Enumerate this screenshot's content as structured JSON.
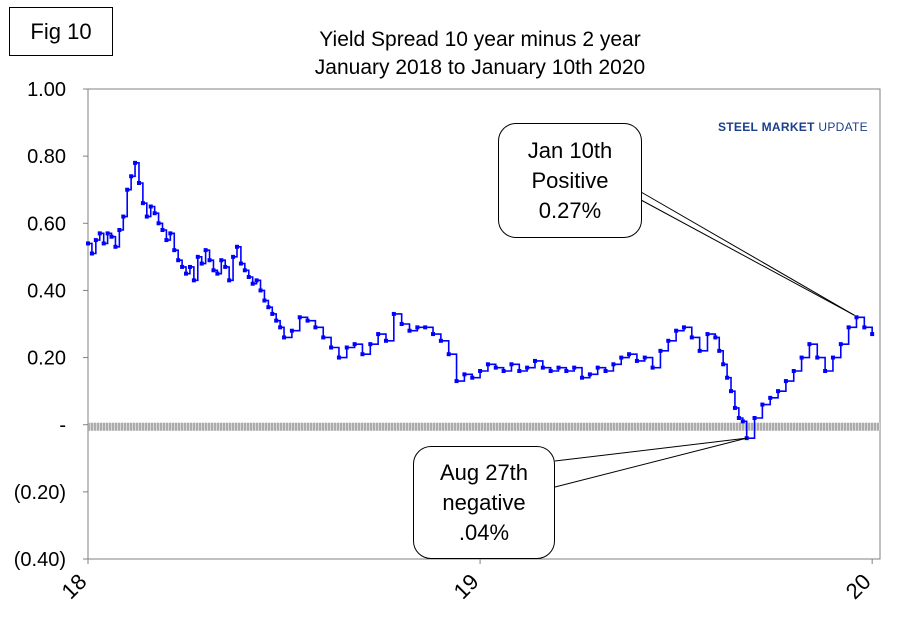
{
  "figure_label": "Fig 10",
  "title_line1": "Yield Spread 10 year minus 2 year",
  "title_line2": "January 2018 to January 10th 2020",
  "logo": {
    "part1": "STEEL MARKET",
    "part2": "UPDATE"
  },
  "callout_top": {
    "line1": "Jan 10th",
    "line2": "Positive",
    "line3": "0.27%"
  },
  "callout_bottom": {
    "line1": "Aug 27th",
    "line2": "negative",
    "line3": ".04%"
  },
  "colors": {
    "series": "#0000ff",
    "axis": "#808080",
    "zero_band": "#808080"
  },
  "chart_data": {
    "type": "line",
    "title": "Yield Spread 10 year minus 2 year January 2018 to January 10th 2020",
    "xlabel": "",
    "ylabel": "",
    "grid": false,
    "xlim": [
      18,
      20.02
    ],
    "ylim": [
      -0.4,
      1.0
    ],
    "x_ticks": [
      "18",
      "19",
      "20"
    ],
    "y_ticks": [
      {
        "value": 1.0,
        "label": "1.00"
      },
      {
        "value": 0.8,
        "label": "0.80"
      },
      {
        "value": 0.6,
        "label": "0.60"
      },
      {
        "value": 0.4,
        "label": "0.40"
      },
      {
        "value": 0.2,
        "label": "0.20"
      },
      {
        "value": 0.0,
        "label": "-"
      },
      {
        "value": -0.2,
        "label": "(0.20)"
      },
      {
        "value": -0.4,
        "label": "(0.40)"
      }
    ],
    "series": [
      {
        "x": [
          18.0,
          18.01,
          18.02,
          18.03,
          18.04,
          18.05,
          18.06,
          18.07,
          18.08,
          18.09,
          18.1,
          18.11,
          18.12,
          18.13,
          18.14,
          18.15,
          18.16,
          18.17,
          18.18,
          18.19,
          18.2,
          18.21,
          18.22,
          18.23,
          18.24,
          18.25,
          18.26,
          18.27,
          18.28,
          18.29,
          18.3,
          18.31,
          18.32,
          18.33,
          18.34,
          18.35,
          18.36,
          18.37,
          18.38,
          18.39,
          18.4,
          18.41,
          18.42,
          18.43,
          18.44,
          18.45,
          18.46,
          18.47,
          18.48,
          18.49,
          18.5,
          18.52,
          18.54,
          18.56,
          18.58,
          18.6,
          18.62,
          18.64,
          18.66,
          18.68,
          18.7,
          18.72,
          18.74,
          18.76,
          18.78,
          18.8,
          18.82,
          18.84,
          18.86,
          18.88,
          18.9,
          18.92,
          18.94,
          18.96,
          18.98,
          19.0,
          19.02,
          19.04,
          19.06,
          19.08,
          19.1,
          19.12,
          19.14,
          19.16,
          19.18,
          19.2,
          19.22,
          19.24,
          19.26,
          19.28,
          19.3,
          19.32,
          19.34,
          19.36,
          19.38,
          19.4,
          19.42,
          19.44,
          19.46,
          19.48,
          19.5,
          19.52,
          19.54,
          19.56,
          19.58,
          19.6,
          19.61,
          19.62,
          19.63,
          19.64,
          19.65,
          19.66,
          19.67,
          19.68,
          19.7,
          19.72,
          19.74,
          19.76,
          19.78,
          19.8,
          19.82,
          19.84,
          19.86,
          19.88,
          19.9,
          19.92,
          19.94,
          19.96,
          19.98,
          20.0
        ],
        "values": [
          0.54,
          0.51,
          0.55,
          0.57,
          0.54,
          0.57,
          0.56,
          0.53,
          0.58,
          0.62,
          0.7,
          0.74,
          0.78,
          0.72,
          0.66,
          0.62,
          0.65,
          0.63,
          0.6,
          0.58,
          0.55,
          0.57,
          0.52,
          0.49,
          0.47,
          0.45,
          0.47,
          0.43,
          0.5,
          0.48,
          0.52,
          0.49,
          0.46,
          0.45,
          0.49,
          0.47,
          0.43,
          0.5,
          0.53,
          0.48,
          0.46,
          0.44,
          0.42,
          0.43,
          0.4,
          0.37,
          0.35,
          0.33,
          0.31,
          0.29,
          0.26,
          0.28,
          0.32,
          0.31,
          0.29,
          0.26,
          0.23,
          0.2,
          0.23,
          0.24,
          0.21,
          0.24,
          0.27,
          0.25,
          0.33,
          0.3,
          0.28,
          0.29,
          0.29,
          0.27,
          0.25,
          0.21,
          0.13,
          0.15,
          0.14,
          0.16,
          0.18,
          0.17,
          0.16,
          0.18,
          0.16,
          0.17,
          0.19,
          0.17,
          0.16,
          0.17,
          0.16,
          0.17,
          0.14,
          0.15,
          0.17,
          0.16,
          0.18,
          0.2,
          0.21,
          0.19,
          0.2,
          0.17,
          0.22,
          0.25,
          0.28,
          0.29,
          0.26,
          0.22,
          0.27,
          0.26,
          0.22,
          0.18,
          0.14,
          0.1,
          0.05,
          0.02,
          0.01,
          -0.04,
          0.02,
          0.06,
          0.08,
          0.1,
          0.13,
          0.16,
          0.2,
          0.24,
          0.2,
          0.16,
          0.2,
          0.24,
          0.29,
          0.32,
          0.29,
          0.27
        ]
      }
    ],
    "annotations": [
      {
        "x": 19.96,
        "y": 0.32,
        "text": "Jan 10th Positive 0.27%"
      },
      {
        "x": 19.68,
        "y": -0.04,
        "text": "Aug 27th negative .04%"
      }
    ]
  }
}
